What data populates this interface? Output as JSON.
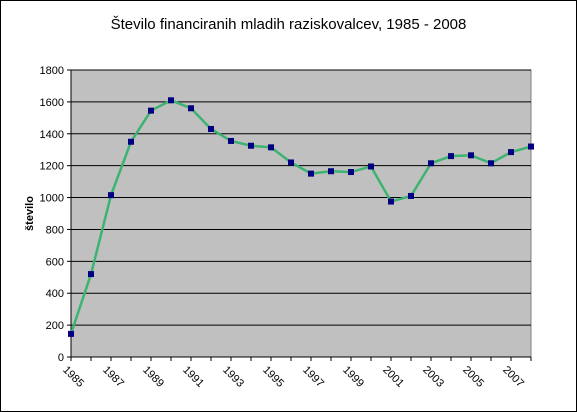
{
  "chart_data": {
    "type": "line",
    "title": "Število financiranih mladih raziskovalcev, 1985 - 2008",
    "xlabel": "",
    "ylabel": "število",
    "ylim": [
      0,
      1800
    ],
    "yticks": [
      0,
      200,
      400,
      600,
      800,
      1000,
      1200,
      1400,
      1600,
      1800
    ],
    "x": [
      "1985",
      "1986",
      "1987",
      "1988",
      "1989",
      "1990",
      "1991",
      "1992",
      "1993",
      "1994",
      "1995",
      "1996",
      "1997",
      "1998",
      "1999",
      "2000",
      "2001",
      "2002",
      "2003",
      "2004",
      "2005",
      "2006",
      "2007",
      "2008"
    ],
    "xtick_labels": [
      "1985",
      "1987",
      "1989",
      "1991",
      "1993",
      "1995",
      "1997",
      "1999",
      "2001",
      "2003",
      "2005",
      "2007"
    ],
    "series": [
      {
        "values": [
          145,
          520,
          1015,
          1350,
          1545,
          1610,
          1560,
          1430,
          1355,
          1325,
          1315,
          1220,
          1150,
          1165,
          1160,
          1195,
          975,
          1010,
          1215,
          1260,
          1265,
          1215,
          1285,
          1320
        ],
        "line_color": "#3cb371",
        "marker_color": "#000080"
      }
    ],
    "plot_background": "#c0c0c0",
    "grid": true,
    "legend": "none"
  }
}
